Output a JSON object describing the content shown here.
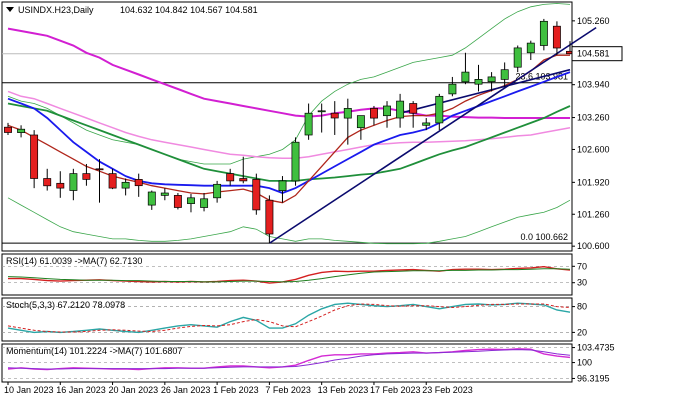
{
  "chart_data": {
    "type": "candlestick",
    "title": "USINDX.H23,Daily",
    "ohlc_header": "104.632 104.842 104.567 104.581",
    "current_price": "104.581",
    "fib_levels": [
      {
        "label": "23.6 103.981",
        "value": 103.981
      },
      {
        "label": "0.0 100.662",
        "value": 100.662
      }
    ],
    "price_ticks": [
      "105.260",
      "104.581",
      "103.940",
      "103.260",
      "102.600",
      "101.920",
      "101.260",
      "100.600"
    ],
    "price_tick_values": [
      105.26,
      104.581,
      103.94,
      103.26,
      102.6,
      101.92,
      101.26,
      100.6
    ],
    "ylim": [
      100.5,
      105.65
    ],
    "x_labels": [
      "10 Jan 2023",
      "16 Jan 2023",
      "20 Jan 2023",
      "26 Jan 2023",
      "1 Feb 2023",
      "7 Feb 2023",
      "13 Feb 2023",
      "17 Feb 2023",
      "23 Feb 2023"
    ],
    "x_label_index": [
      0,
      4,
      8,
      12,
      16,
      20,
      24,
      28,
      32
    ],
    "candles": [
      [
        103.06,
        103.15,
        102.9,
        102.95
      ],
      [
        102.95,
        103.1,
        102.85,
        103.02
      ],
      [
        102.9,
        103.0,
        101.8,
        102.0
      ],
      [
        102.0,
        102.2,
        101.75,
        101.85
      ],
      [
        101.9,
        102.15,
        101.6,
        101.8
      ],
      [
        101.75,
        102.2,
        101.55,
        102.1
      ],
      [
        102.1,
        102.3,
        101.85,
        101.98
      ],
      [
        102.2,
        102.4,
        101.5,
        102.18
      ],
      [
        102.1,
        102.2,
        101.78,
        101.8
      ],
      [
        101.8,
        102.0,
        101.65,
        101.92
      ],
      [
        101.98,
        102.1,
        101.62,
        101.85
      ],
      [
        101.45,
        101.75,
        101.35,
        101.72
      ],
      [
        101.65,
        101.8,
        101.55,
        101.7
      ],
      [
        101.65,
        101.7,
        101.36,
        101.4
      ],
      [
        101.48,
        101.68,
        101.3,
        101.6
      ],
      [
        101.4,
        101.7,
        101.32,
        101.58
      ],
      [
        101.6,
        101.95,
        101.5,
        101.88
      ],
      [
        102.1,
        102.2,
        101.85,
        101.95
      ],
      [
        102.0,
        102.45,
        101.9,
        101.95
      ],
      [
        101.98,
        102.1,
        101.25,
        101.35
      ],
      [
        101.55,
        101.65,
        100.66,
        100.85
      ],
      [
        101.75,
        102.05,
        101.5,
        101.95
      ],
      [
        101.95,
        102.85,
        101.85,
        102.75
      ],
      [
        102.9,
        103.55,
        102.8,
        103.35
      ],
      [
        103.4,
        103.55,
        102.95,
        103.4
      ],
      [
        103.35,
        103.6,
        102.9,
        103.25
      ],
      [
        103.25,
        103.65,
        102.7,
        103.45
      ],
      [
        103.05,
        103.3,
        102.8,
        103.3
      ],
      [
        103.45,
        103.5,
        103.1,
        103.25
      ],
      [
        103.3,
        103.6,
        103.05,
        103.5
      ],
      [
        103.25,
        103.75,
        103.05,
        103.6
      ],
      [
        103.55,
        103.6,
        103.05,
        103.35
      ],
      [
        103.1,
        103.25,
        103.0,
        103.15
      ],
      [
        103.15,
        103.75,
        103.0,
        103.7
      ],
      [
        103.75,
        104.1,
        103.7,
        103.95
      ],
      [
        104.0,
        104.6,
        103.95,
        104.2
      ],
      [
        103.95,
        104.35,
        103.8,
        104.05
      ],
      [
        104.0,
        104.2,
        103.8,
        104.1
      ],
      [
        104.05,
        104.4,
        103.9,
        104.25
      ],
      [
        104.3,
        104.75,
        104.2,
        104.7
      ],
      [
        104.6,
        104.85,
        104.45,
        104.8
      ],
      [
        104.75,
        105.3,
        104.65,
        105.25
      ],
      [
        105.15,
        105.25,
        104.55,
        104.7
      ],
      [
        104.63,
        104.84,
        104.57,
        104.58
      ]
    ],
    "bands": {
      "upper": [
        103.7,
        103.6,
        103.55,
        103.45,
        103.3,
        103.15,
        103.0,
        102.9,
        102.8,
        102.75,
        102.7,
        102.6,
        102.5,
        102.4,
        102.35,
        102.3,
        102.3,
        102.3,
        102.4,
        102.45,
        102.5,
        102.6,
        102.8,
        103.3,
        103.6,
        103.8,
        103.95,
        104.05,
        104.1,
        104.2,
        104.3,
        104.4,
        104.45,
        104.5,
        104.55,
        104.7,
        104.9,
        105.1,
        105.3,
        105.45,
        105.55,
        105.6,
        105.62,
        105.6
      ],
      "lower": [
        101.6,
        101.45,
        101.3,
        101.15,
        101.0,
        100.9,
        100.85,
        100.8,
        100.75,
        100.75,
        100.72,
        100.7,
        100.7,
        100.72,
        100.75,
        100.8,
        100.85,
        100.9,
        101.0,
        100.95,
        100.8,
        100.75,
        100.7,
        100.75,
        100.75,
        100.72,
        100.7,
        100.68,
        100.66,
        100.65,
        100.65,
        100.65,
        100.66,
        100.7,
        100.75,
        100.8,
        100.9,
        101.0,
        101.1,
        101.2,
        101.25,
        101.3,
        101.4,
        101.55
      ]
    },
    "ma_fast": [
      103.1,
      103.0,
      102.85,
      102.7,
      102.55,
      102.4,
      102.25,
      102.15,
      102.05,
      101.98,
      101.92,
      101.85,
      101.8,
      101.75,
      101.7,
      101.68,
      101.72,
      101.75,
      101.78,
      101.7,
      101.55,
      101.5,
      101.65,
      101.95,
      102.25,
      102.55,
      102.85,
      103.0,
      103.1,
      103.2,
      103.28,
      103.3,
      103.3,
      103.35,
      103.45,
      103.6,
      103.72,
      103.82,
      103.92,
      104.05,
      104.22,
      104.45,
      104.55,
      104.55
    ],
    "ma_blue": [
      103.65,
      103.55,
      103.45,
      103.25,
      103.0,
      102.75,
      102.55,
      102.35,
      102.2,
      102.05,
      101.95,
      101.9,
      101.88,
      101.87,
      101.86,
      101.85,
      101.85,
      101.85,
      101.85,
      101.85,
      101.8,
      101.7,
      101.8,
      101.95,
      102.1,
      102.25,
      102.4,
      102.55,
      102.7,
      102.8,
      102.9,
      102.95,
      103.02,
      103.15,
      103.3,
      103.4,
      103.5,
      103.6,
      103.7,
      103.8,
      103.9,
      104.0,
      104.1,
      104.2
    ],
    "ma_green": [
      103.55,
      103.5,
      103.45,
      103.4,
      103.3,
      103.2,
      103.1,
      103.0,
      102.9,
      102.8,
      102.7,
      102.6,
      102.5,
      102.4,
      102.3,
      102.2,
      102.15,
      102.1,
      102.05,
      102.0,
      101.95,
      101.95,
      101.95,
      101.98,
      102.0,
      102.02,
      102.05,
      102.08,
      102.1,
      102.15,
      102.2,
      102.3,
      102.4,
      102.5,
      102.58,
      102.65,
      102.75,
      102.85,
      102.95,
      103.05,
      103.15,
      103.25,
      103.38,
      103.5
    ],
    "ma_magenta": [
      105.1,
      105.05,
      105.0,
      104.95,
      104.85,
      104.75,
      104.6,
      104.5,
      104.35,
      104.25,
      104.15,
      104.05,
      103.95,
      103.85,
      103.75,
      103.65,
      103.6,
      103.55,
      103.5,
      103.45,
      103.4,
      103.35,
      103.3,
      103.28,
      103.3,
      103.35,
      103.38,
      103.42,
      103.45,
      103.45,
      103.4,
      103.35,
      103.3,
      103.3,
      103.28,
      103.27,
      103.26,
      103.26,
      103.25,
      103.25,
      103.25,
      103.25,
      103.25,
      103.25
    ],
    "ma_pink": [
      103.8,
      103.7,
      103.65,
      103.55,
      103.45,
      103.35,
      103.25,
      103.15,
      103.05,
      102.95,
      102.87,
      102.8,
      102.75,
      102.7,
      102.65,
      102.6,
      102.55,
      102.5,
      102.48,
      102.45,
      102.43,
      102.42,
      102.42,
      102.45,
      102.5,
      102.55,
      102.6,
      102.65,
      102.7,
      102.72,
      102.74,
      102.75,
      102.75,
      102.76,
      102.77,
      102.78,
      102.8,
      102.82,
      102.85,
      102.88,
      102.9,
      102.95,
      103.0,
      103.05
    ],
    "trendline_main": {
      "from": [
        20,
        100.66
      ],
      "to": [
        45,
        105.12
      ]
    },
    "trendline_upper": {
      "from": [
        30,
        103.35
      ],
      "to": [
        43,
        104.25
      ]
    },
    "rsi": {
      "label": "RSI(14) 61.0039 ->MA(7) 62.7130",
      "ticks": [
        "70",
        "30"
      ],
      "tick_values": [
        70,
        30
      ],
      "ylim": [
        0,
        100
      ],
      "rsi": [
        40,
        40,
        38,
        35,
        34,
        35,
        36,
        37,
        35,
        34,
        33,
        32,
        33,
        32,
        33,
        32,
        33,
        35,
        36,
        34,
        29,
        32,
        38,
        48,
        55,
        58,
        57,
        58,
        58,
        60,
        61,
        62,
        60,
        58,
        62,
        63,
        63,
        62,
        63,
        65,
        66,
        69,
        64,
        61
      ],
      "ma": [
        45,
        44,
        42,
        40,
        38,
        37,
        36,
        36,
        36,
        35,
        35,
        34,
        33,
        33,
        33,
        32,
        32,
        33,
        34,
        34,
        33,
        32,
        33,
        36,
        40,
        45,
        49,
        53,
        56,
        57,
        58,
        59,
        59,
        59,
        60,
        60,
        61,
        61,
        62,
        62,
        63,
        64,
        64,
        62.7
      ]
    },
    "stoch": {
      "label": "Stoch(5,3,3) 67.2120 78.0978",
      "ticks": [
        "80",
        "20"
      ],
      "tick_values": [
        80,
        20
      ],
      "ylim": [
        0,
        100
      ],
      "k": [
        30,
        25,
        20,
        22,
        20,
        22,
        25,
        28,
        25,
        22,
        20,
        25,
        30,
        35,
        38,
        35,
        32,
        45,
        55,
        48,
        30,
        30,
        40,
        60,
        75,
        85,
        88,
        85,
        82,
        80,
        82,
        85,
        80,
        75,
        80,
        85,
        86,
        84,
        85,
        88,
        86,
        84,
        72,
        67
      ],
      "d": [
        35,
        30,
        25,
        22,
        21,
        21,
        22,
        25,
        26,
        25,
        23,
        22,
        25,
        30,
        34,
        36,
        35,
        38,
        45,
        50,
        45,
        35,
        33,
        45,
        58,
        72,
        82,
        86,
        85,
        82,
        81,
        82,
        82,
        80,
        78,
        80,
        83,
        85,
        85,
        86,
        86,
        86,
        80,
        78
      ]
    },
    "momentum": {
      "label": "Momentum(14) 101.2224 ->MA(7) 101.6807",
      "ticks": [
        "103.4735",
        "100",
        "96.3195"
      ],
      "tick_values": [
        103.4735,
        100,
        96.3195
      ],
      "ylim": [
        95.5,
        104.3
      ],
      "mom": [
        98.5,
        98.8,
        98.5,
        98.4,
        98.6,
        98.8,
        98.7,
        98.6,
        98.5,
        98.5,
        98.4,
        98.6,
        98.8,
        98.8,
        98.7,
        98.7,
        99.0,
        99.2,
        99.2,
        99.0,
        98.8,
        99.0,
        99.4,
        100.5,
        101.5,
        101.8,
        101.8,
        102.0,
        102.0,
        102.2,
        102.3,
        102.5,
        102.2,
        102.3,
        102.5,
        102.8,
        103.0,
        103.1,
        103.0,
        103.2,
        103.1,
        102.0,
        101.5,
        101.2
      ],
      "ma": [
        98.8,
        98.7,
        98.6,
        98.5,
        98.5,
        98.6,
        98.6,
        98.6,
        98.6,
        98.6,
        98.6,
        98.6,
        98.6,
        98.7,
        98.7,
        98.7,
        98.8,
        98.9,
        99.0,
        99.0,
        99.0,
        99.0,
        99.1,
        99.5,
        100.0,
        100.6,
        101.0,
        101.5,
        101.8,
        102.0,
        102.1,
        102.2,
        102.2,
        102.3,
        102.4,
        102.5,
        102.6,
        102.8,
        102.9,
        103.0,
        102.9,
        102.5,
        102.0,
        101.68
      ]
    }
  }
}
